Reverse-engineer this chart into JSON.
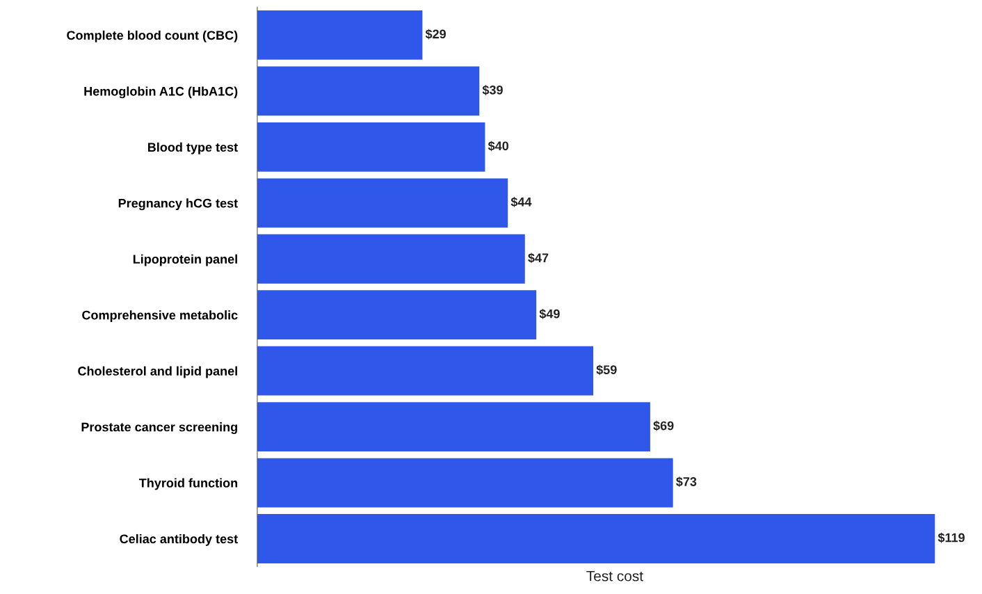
{
  "chart_data": {
    "type": "bar",
    "orientation": "horizontal",
    "xlabel": "Test cost",
    "categories": [
      "Complete blood count (CBC)",
      "Hemoglobin A1C (HbA1C)",
      "Blood type test",
      "Pregnancy hCG test",
      "Lipoprotein panel",
      "Comprehensive metabolic",
      "Cholesterol and lipid panel",
      "Prostate cancer screening",
      "Thyroid function",
      "Celiac antibody test"
    ],
    "values": [
      29,
      39,
      40,
      44,
      47,
      49,
      59,
      69,
      73,
      119
    ],
    "value_labels": [
      "$29",
      "$39",
      "$40",
      "$44",
      "$47",
      "$49",
      "$59",
      "$69",
      "$73",
      "$119"
    ],
    "color": "#2f57ea",
    "grid": false,
    "legend": false
  }
}
